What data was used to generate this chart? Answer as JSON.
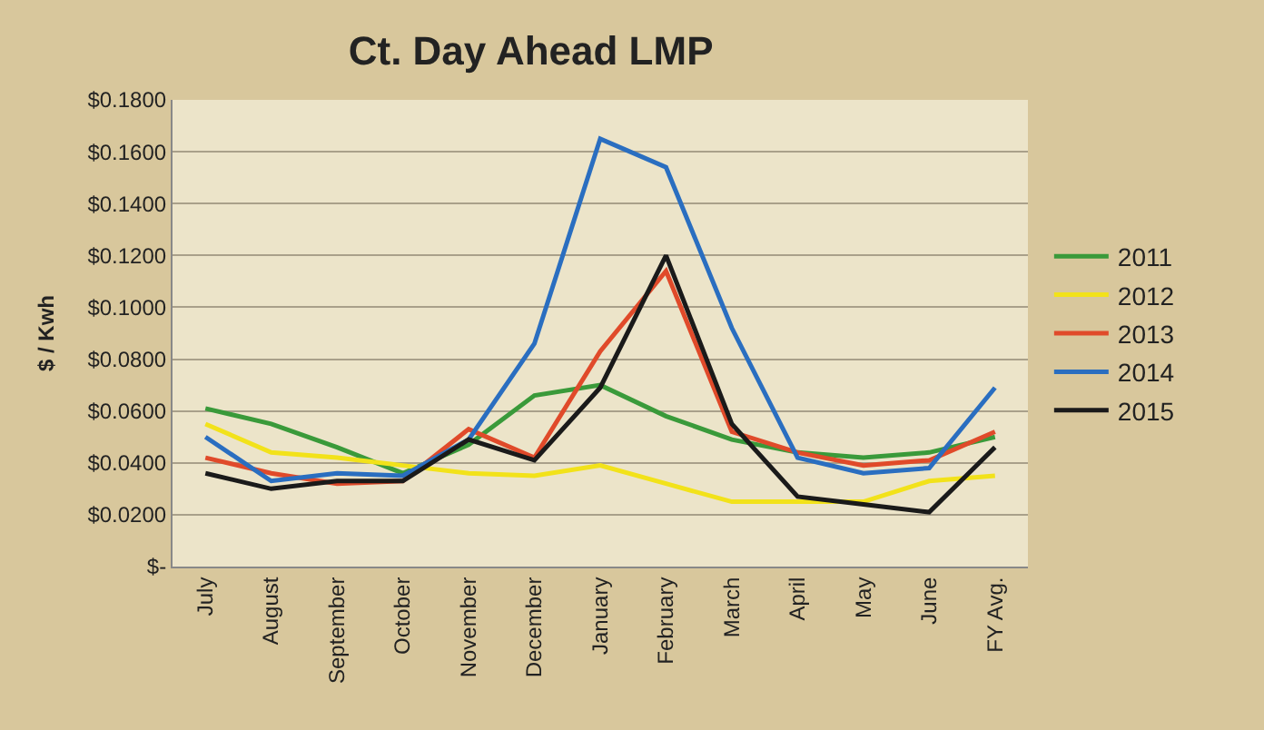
{
  "chart_data": {
    "type": "line",
    "title": "Ct. Day Ahead LMP",
    "ylabel": "$ / Kwh",
    "categories": [
      "July",
      "August",
      "September",
      "October",
      "November",
      "December",
      "January",
      "February",
      "March",
      "April",
      "May",
      "June",
      "FY Avg."
    ],
    "series": [
      {
        "name": "2011",
        "color": "#3a9a3a",
        "values": [
          0.061,
          0.055,
          0.046,
          0.036,
          0.047,
          0.066,
          0.07,
          0.058,
          0.049,
          0.044,
          0.042,
          0.044,
          0.05
        ]
      },
      {
        "name": "2012",
        "color": "#f2e21a",
        "values": [
          0.055,
          0.044,
          0.042,
          0.039,
          0.036,
          0.035,
          0.039,
          0.032,
          0.025,
          0.025,
          0.025,
          0.033,
          0.035
        ]
      },
      {
        "name": "2013",
        "color": "#e04a2a",
        "values": [
          0.042,
          0.036,
          0.032,
          0.033,
          0.053,
          0.042,
          0.083,
          0.114,
          0.052,
          0.044,
          0.039,
          0.041,
          0.052
        ]
      },
      {
        "name": "2014",
        "color": "#2a6ec0",
        "values": [
          0.05,
          0.033,
          0.036,
          0.035,
          0.049,
          0.086,
          0.165,
          0.154,
          0.092,
          0.042,
          0.036,
          0.038,
          0.069
        ]
      },
      {
        "name": "2015",
        "color": "#1a1a1a",
        "values": [
          0.036,
          0.03,
          0.033,
          0.033,
          0.049,
          0.041,
          0.069,
          0.12,
          0.055,
          0.027,
          0.024,
          0.021,
          0.046
        ]
      }
    ],
    "ylim": [
      0,
      0.18
    ],
    "yticks": [
      {
        "value": 0,
        "label": "$-"
      },
      {
        "value": 0.02,
        "label": "$0.0200"
      },
      {
        "value": 0.04,
        "label": "$0.0400"
      },
      {
        "value": 0.06,
        "label": "$0.0600"
      },
      {
        "value": 0.08,
        "label": "$0.0800"
      },
      {
        "value": 0.1,
        "label": "$0.1000"
      },
      {
        "value": 0.12,
        "label": "$0.1200"
      },
      {
        "value": 0.14,
        "label": "$0.1400"
      },
      {
        "value": 0.16,
        "label": "$0.1600"
      },
      {
        "value": 0.18,
        "label": "$0.1800"
      }
    ],
    "grid": "y",
    "legend": "right",
    "marker": "none",
    "line_style": "solid"
  }
}
